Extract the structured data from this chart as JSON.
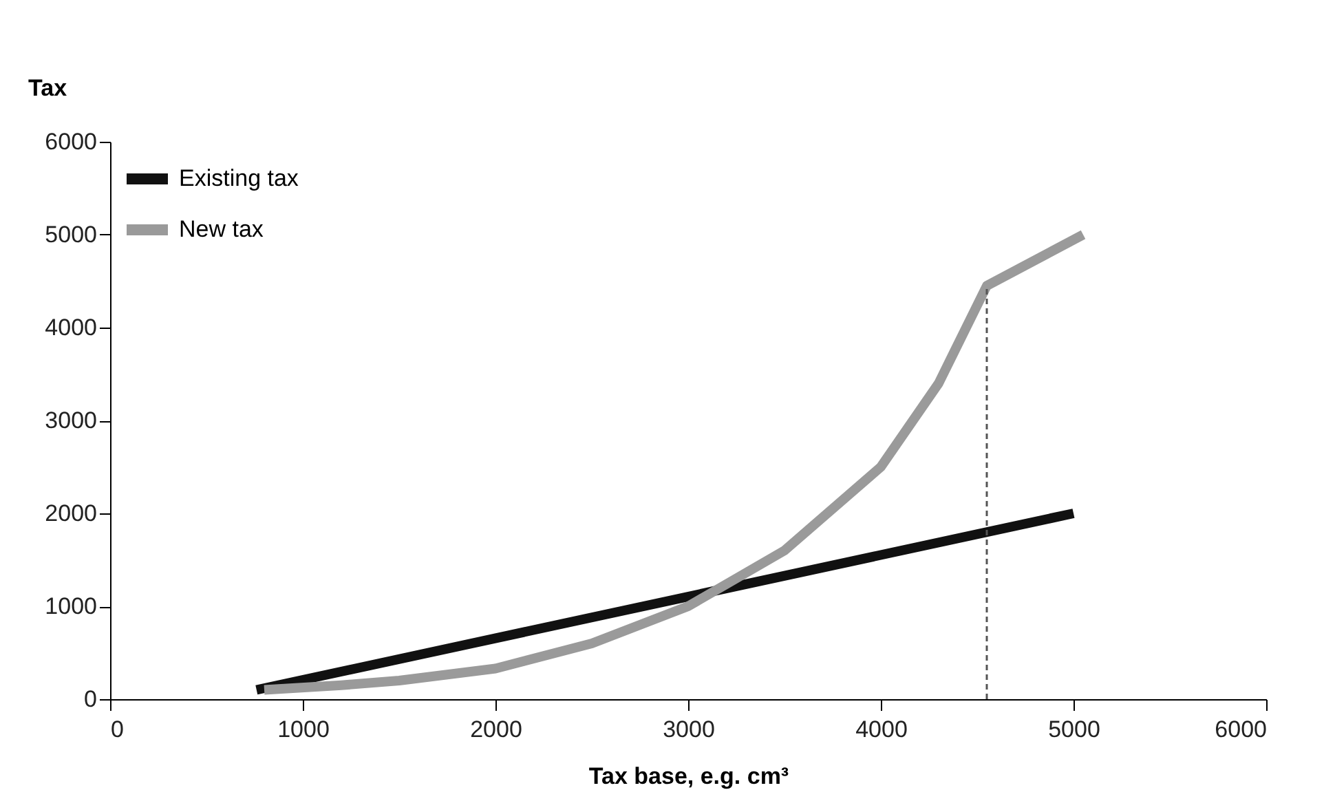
{
  "chart_data": {
    "type": "line",
    "xlabel": "Tax base, e.g. cm³",
    "ylabel": "Tax",
    "xlim": [
      0,
      6000
    ],
    "xticks": [
      0,
      1000,
      2000,
      3000,
      4000,
      5000,
      6000
    ],
    "ylim": [
      0,
      6000
    ],
    "yticks": [
      0,
      1000,
      2000,
      3000,
      4000,
      5000,
      6000
    ],
    "grid": false,
    "legend": "top left",
    "marker": "none",
    "series": [
      {
        "name": "Existing tax",
        "color": "#111111",
        "x": [
          760,
          5000
        ],
        "values": [
          100,
          2000
        ]
      },
      {
        "name": "New tax",
        "color": "#9a9a9a",
        "x": [
          800,
          1200,
          1500,
          2000,
          2500,
          3000,
          3500,
          4000,
          4300,
          4550,
          5050
        ],
        "values": [
          100,
          150,
          200,
          330,
          600,
          1000,
          1600,
          2500,
          3400,
          4450,
          5000
        ]
      },
      {
        "color": "#555555",
        "line_style": "dashed",
        "x": [
          4550,
          4550
        ],
        "values": [
          0,
          4450
        ]
      }
    ]
  }
}
